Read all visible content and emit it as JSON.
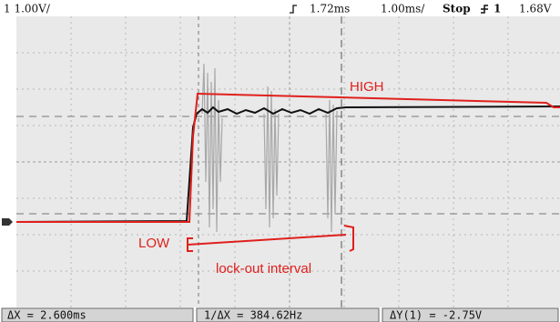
{
  "header": {
    "channel_scale": "1 1.00V/",
    "trigger_position": "1.72ms",
    "time_scale": "1.00ms/",
    "run_state": "Stop",
    "trigger_source": "1",
    "trigger_level": "1.68V"
  },
  "annotations": {
    "high": "HIGH",
    "low": "LOW",
    "interval": "lock-out interval"
  },
  "readouts": {
    "delta_x": "ΔX = 2.600ms",
    "inverse_delta_x": "1/ΔX = 384.62Hz",
    "delta_y": "ΔY(1) = -2.75V"
  }
}
